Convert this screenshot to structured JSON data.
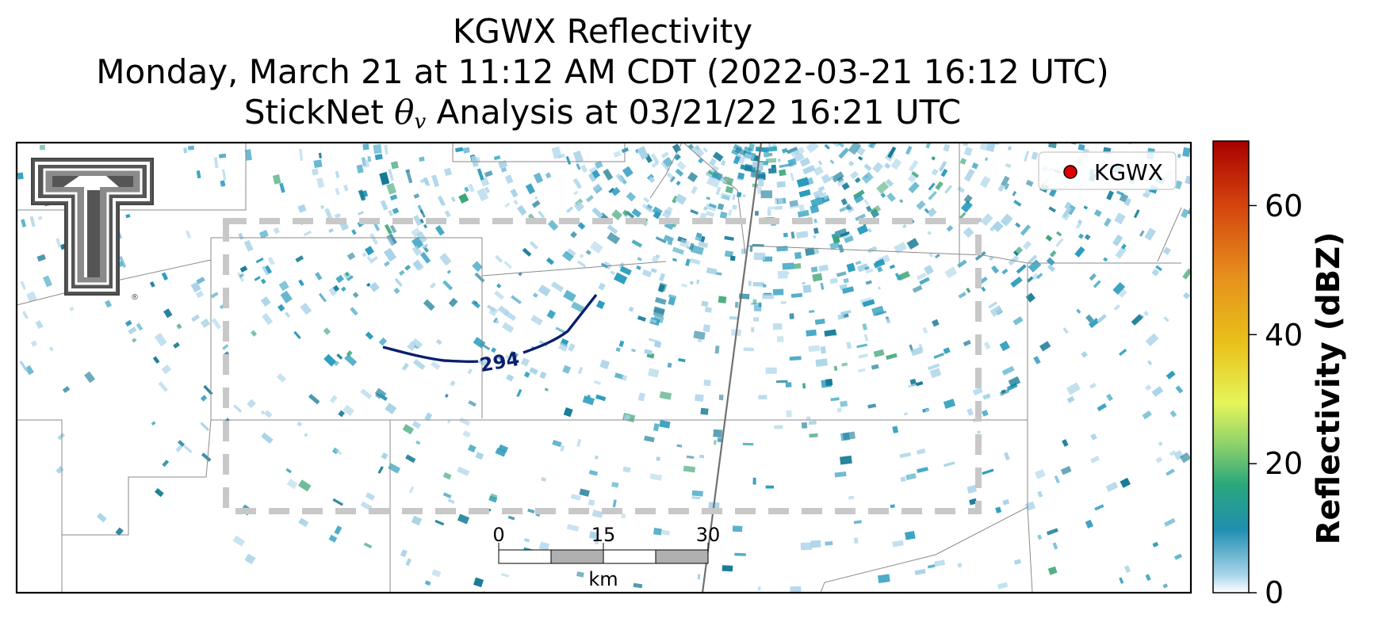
{
  "title": {
    "line1": "KGWX Reflectivity",
    "line2": "Monday, March 21 at 11:12 AM CDT (2022-03-21 16:12 UTC)",
    "line3_prefix": "StickNet",
    "line3_symbol": "θ",
    "line3_subscript": "v",
    "line3_suffix": "Analysis at 03/21/22 16:21 UTC"
  },
  "legend": {
    "label": "KGWX",
    "marker_color": "#e00000"
  },
  "contour": {
    "label": "294",
    "color": "#0b1f6e"
  },
  "scale_bar": {
    "ticks": [
      "0",
      "15",
      "30"
    ],
    "unit": "km"
  },
  "colorbar": {
    "label": "Reflectivity (dBZ)",
    "ticks": [
      "0",
      "20",
      "40",
      "60"
    ],
    "tick_values": [
      0,
      20,
      40,
      60
    ],
    "range": [
      0,
      70
    ],
    "colors": [
      "#ffffff",
      "#1f8fb0",
      "#2aa87a",
      "#8fd26a",
      "#e6f55a",
      "#e8c21a",
      "#e6901c",
      "#d6480f",
      "#a80000"
    ]
  },
  "logo": {
    "text": "T"
  },
  "colors": {
    "echo_light": "#a9d3e8",
    "echo_mid": "#2a9bbd",
    "echo_dark": "#157a96",
    "echo_green": "#3aa575",
    "border": "#8a8a8a",
    "dashed_box": "#c8c8c8"
  }
}
